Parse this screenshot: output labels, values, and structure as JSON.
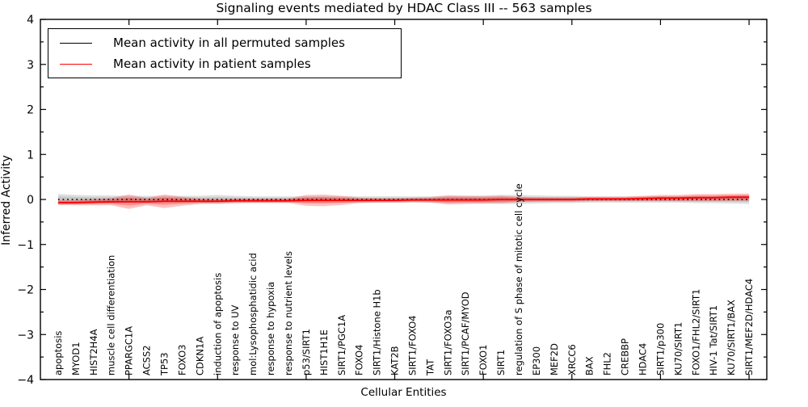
{
  "title": "Signaling events mediated by HDAC Class III -- 563 samples",
  "legend": {
    "items": [
      {
        "label": "Mean activity in all permuted samples",
        "color": "#000000"
      },
      {
        "label": "Mean activity in patient samples",
        "color": "#ff0000"
      }
    ]
  },
  "chart_data": {
    "type": "line",
    "title": "Signaling events mediated by HDAC Class III -- 563 samples",
    "xlabel": "Cellular Entities",
    "ylabel": "Inferred Activity",
    "ylim": [
      -4,
      4
    ],
    "yticks": [
      -4,
      -3,
      -2,
      -1,
      0,
      1,
      2,
      3,
      4
    ],
    "y_minor_step": 0.5,
    "x_major_tick_every": 5,
    "grid": false,
    "legend_position": "upper left",
    "tick_direction": "in",
    "categories": [
      "apoptosis",
      "MYOD1",
      "HIST2H4A",
      "muscle cell differentiation",
      "PPARGC1A",
      "ACSS2",
      "TP53",
      "FOXO3",
      "CDKN1A",
      "induction of apoptosis",
      "response to UV",
      "mol:Lysophosphatidic acid",
      "response to hypoxia",
      "response to nutrient levels",
      "p53/SIRT1",
      "HIST1H1E",
      "SIRT1/PGC1A",
      "FOXO4",
      "SIRT1/Histone H1b",
      "KAT2B",
      "SIRT1/FOXO4",
      "TAT",
      "SIRT1/FOXO3a",
      "SIRT1/PCAF/MYOD",
      "FOXO1",
      "SIRT1",
      "regulation of S phase of mitotic cell cycle",
      "EP300",
      "MEF2D",
      "XRCC6",
      "BAX",
      "FHL2",
      "CREBBP",
      "HDAC4",
      "SIRT1/p300",
      "KU70/SIRT1",
      "FOXO1/FHL2/SIRT1",
      "HIV-1 Tat/SIRT1",
      "KU70/SIRT1/BAX",
      "SIRT1/MEF2D/HDAC4"
    ],
    "series": [
      {
        "name": "Mean activity in all permuted samples",
        "color": "#000000",
        "style": "dotted",
        "values": [
          0,
          0,
          0,
          0,
          0,
          0,
          0,
          0,
          0,
          0,
          0,
          0,
          0,
          0,
          0,
          0,
          0,
          0,
          0,
          0,
          0,
          0,
          0,
          0,
          0,
          0,
          0,
          0,
          0,
          0,
          0,
          0,
          0,
          0,
          0,
          0,
          0,
          0,
          0,
          0
        ]
      },
      {
        "name": "Mean activity in patient samples",
        "color": "#ff0000",
        "style": "solid",
        "values": [
          -0.07,
          -0.07,
          -0.06,
          -0.05,
          -0.05,
          -0.05,
          -0.04,
          -0.04,
          -0.04,
          -0.04,
          -0.03,
          -0.03,
          -0.03,
          -0.03,
          -0.02,
          -0.02,
          -0.02,
          -0.02,
          -0.02,
          -0.02,
          -0.01,
          -0.01,
          -0.01,
          -0.01,
          -0.01,
          0.0,
          0.0,
          0.0,
          0.0,
          0.0,
          0.01,
          0.01,
          0.01,
          0.02,
          0.03,
          0.03,
          0.04,
          0.04,
          0.05,
          0.05
        ]
      }
    ],
    "bands": [
      {
        "name": "permuted-activity-range",
        "color": "#999999",
        "opacity": 0.32,
        "follows_series": 0,
        "half_widths": [
          0.12,
          0.1,
          0.09,
          0.09,
          0.08,
          0.08,
          0.08,
          0.08,
          0.08,
          0.1,
          0.08,
          0.07,
          0.07,
          0.07,
          0.07,
          0.07,
          0.07,
          0.07,
          0.07,
          0.07,
          0.07,
          0.07,
          0.08,
          0.08,
          0.09,
          0.1,
          0.1,
          0.09,
          0.08,
          0.08,
          0.07,
          0.07,
          0.07,
          0.07,
          0.07,
          0.07,
          0.08,
          0.08,
          0.09,
          0.1
        ]
      },
      {
        "name": "patient-activity-range",
        "color": "#ff0000",
        "opacity": 0.24,
        "follows_series": 1,
        "half_widths": [
          0.05,
          0.06,
          0.07,
          0.08,
          0.16,
          0.08,
          0.15,
          0.1,
          0.06,
          0.05,
          0.05,
          0.05,
          0.05,
          0.05,
          0.12,
          0.13,
          0.1,
          0.06,
          0.05,
          0.05,
          0.05,
          0.06,
          0.1,
          0.09,
          0.08,
          0.08,
          0.06,
          0.05,
          0.05,
          0.05,
          0.05,
          0.05,
          0.05,
          0.06,
          0.07,
          0.07,
          0.08,
          0.08,
          0.08,
          0.08
        ]
      }
    ]
  }
}
